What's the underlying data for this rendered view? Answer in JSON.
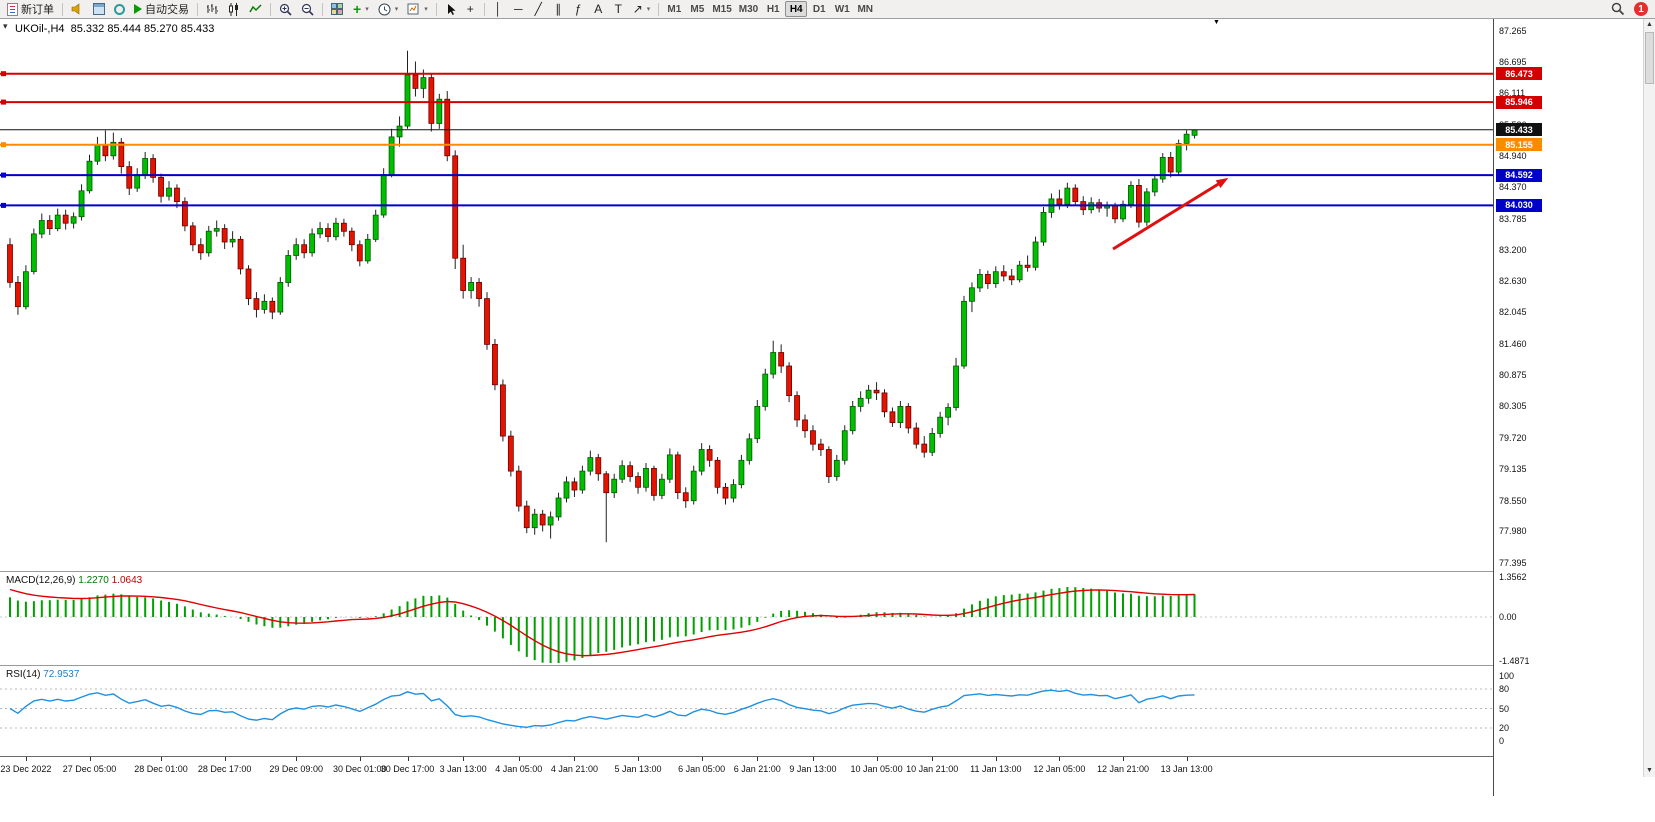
{
  "toolbar": {
    "new_order": "新订单",
    "autotrading": "自动交易",
    "timeframes": [
      "M1",
      "M5",
      "M15",
      "M30",
      "H1",
      "H4",
      "D1",
      "W1",
      "MN"
    ],
    "active_timeframe": "H4",
    "notification_count": "1",
    "glyphs": {
      "dropdown": "▾",
      "indicators_plus": "+",
      "crosshair": "+",
      "vline": "│",
      "hline": "─",
      "trendline": "╱",
      "channel": "∥",
      "fibonacci": "ƒ",
      "text_tool": "A",
      "label_tool": "T",
      "arrows_tool": "↗",
      "oneclick": "▾",
      "shift_marker": "▼",
      "scroll_up": "▲",
      "scroll_down": "▼"
    }
  },
  "chart": {
    "symbol_title": "UKOil-,H4",
    "ohlc_text": "85.332 85.444 85.270 85.433",
    "macd_label": "MACD(12,26,9)",
    "macd_value_main": "1.2270",
    "macd_value_signal": "1.0643",
    "rsi_label": "RSI(14)",
    "rsi_value": "72.9537"
  },
  "chart_data": {
    "type": "candlestick",
    "symbol": "UKOil-",
    "timeframe": "H4",
    "ohlc_current": {
      "open": 85.332,
      "high": 85.444,
      "low": 85.27,
      "close": 85.433
    },
    "ylim": [
      77.395,
      87.265
    ],
    "y_axis_ticks": [
      "87.265",
      "86.695",
      "86.111",
      "85.526",
      "84.940",
      "84.370",
      "83.785",
      "83.200",
      "82.630",
      "82.045",
      "81.460",
      "80.875",
      "80.305",
      "79.720",
      "79.135",
      "78.550",
      "77.980",
      "77.395"
    ],
    "x_labels": [
      [
        "23 Dec 2022",
        2
      ],
      [
        "27 Dec 05:00",
        10
      ],
      [
        "28 Dec 01:00",
        19
      ],
      [
        "28 Dec 17:00",
        27
      ],
      [
        "29 Dec 09:00",
        36
      ],
      [
        "30 Dec 01:00",
        44
      ],
      [
        "30 Dec 17:00",
        50
      ],
      [
        "3 Jan 13:00",
        57
      ],
      [
        "4 Jan 05:00",
        64
      ],
      [
        "4 Jan 21:00",
        71
      ],
      [
        "5 Jan 13:00",
        79
      ],
      [
        "6 Jan 05:00",
        87
      ],
      [
        "6 Jan 21:00",
        94
      ],
      [
        "9 Jan 13:00",
        101
      ],
      [
        "10 Jan 05:00",
        109
      ],
      [
        "10 Jan 21:00",
        116
      ],
      [
        "11 Jan 13:00",
        124
      ],
      [
        "12 Jan 05:00",
        132
      ],
      [
        "12 Jan 21:00",
        140
      ],
      [
        "13 Jan 13:00",
        148
      ]
    ],
    "hlines": [
      {
        "price": 86.473,
        "label": "86.473",
        "color": "#d40000"
      },
      {
        "price": 85.946,
        "label": "85.946",
        "color": "#d40000"
      },
      {
        "price": 85.155,
        "label": "85.155",
        "color": "#ff8a00"
      },
      {
        "price": 84.592,
        "label": "84.592",
        "color": "#0000c8"
      },
      {
        "price": 84.03,
        "label": "84.030",
        "color": "#0000c8"
      }
    ],
    "current_price": {
      "price": 85.433,
      "label": "85.433",
      "color": "#111111"
    },
    "trend_arrow": {
      "from": [
        139,
        83.22
      ],
      "to": [
        153.5,
        84.54
      ],
      "color": "#e01010"
    },
    "indicators": [
      {
        "type": "MACD",
        "params": [
          12,
          26,
          9
        ],
        "current": [
          1.227,
          1.0643
        ],
        "y_ticks": [
          "1.3562",
          "0.00",
          "-1.4871"
        ],
        "range": [
          -1.4871,
          1.3562
        ]
      },
      {
        "type": "RSI",
        "params": [
          14
        ],
        "current": 72.9537,
        "y_ticks": [
          "100",
          "80",
          "50",
          "20",
          "0"
        ],
        "levels": [
          80,
          50,
          20
        ]
      }
    ],
    "candles": [
      [
        83.3,
        83.42,
        82.5,
        82.6
      ],
      [
        82.6,
        82.72,
        82.0,
        82.15
      ],
      [
        82.15,
        82.92,
        82.1,
        82.8
      ],
      [
        82.8,
        83.6,
        82.75,
        83.5
      ],
      [
        83.5,
        83.88,
        83.42,
        83.75
      ],
      [
        83.75,
        83.85,
        83.48,
        83.6
      ],
      [
        83.6,
        83.97,
        83.55,
        83.85
      ],
      [
        83.85,
        83.95,
        83.58,
        83.7
      ],
      [
        83.7,
        83.9,
        83.6,
        83.82
      ],
      [
        83.82,
        84.42,
        83.75,
        84.3
      ],
      [
        84.3,
        84.97,
        84.25,
        84.85
      ],
      [
        84.85,
        85.3,
        84.78,
        85.15
      ],
      [
        85.15,
        85.42,
        84.85,
        84.95
      ],
      [
        84.95,
        85.38,
        84.88,
        85.2
      ],
      [
        85.2,
        85.28,
        84.62,
        84.75
      ],
      [
        84.75,
        84.85,
        84.22,
        84.35
      ],
      [
        84.35,
        84.72,
        84.28,
        84.6
      ],
      [
        84.6,
        85.02,
        84.52,
        84.9
      ],
      [
        84.9,
        84.98,
        84.45,
        84.55
      ],
      [
        84.55,
        84.62,
        84.08,
        84.2
      ],
      [
        84.2,
        84.48,
        84.12,
        84.35
      ],
      [
        84.35,
        84.42,
        83.98,
        84.1
      ],
      [
        84.1,
        84.18,
        83.55,
        83.65
      ],
      [
        83.65,
        83.72,
        83.18,
        83.3
      ],
      [
        83.3,
        83.42,
        83.02,
        83.15
      ],
      [
        83.15,
        83.65,
        83.08,
        83.55
      ],
      [
        83.55,
        83.75,
        83.45,
        83.6
      ],
      [
        83.6,
        83.68,
        83.22,
        83.35
      ],
      [
        83.35,
        83.55,
        83.25,
        83.4
      ],
      [
        83.4,
        83.46,
        82.75,
        82.85
      ],
      [
        82.85,
        82.92,
        82.18,
        82.3
      ],
      [
        82.3,
        82.42,
        81.95,
        82.1
      ],
      [
        82.1,
        82.38,
        82.02,
        82.25
      ],
      [
        82.25,
        82.32,
        81.92,
        82.05
      ],
      [
        82.05,
        82.7,
        82.0,
        82.6
      ],
      [
        82.6,
        83.2,
        82.52,
        83.1
      ],
      [
        83.1,
        83.42,
        83.02,
        83.3
      ],
      [
        83.3,
        83.4,
        83.05,
        83.15
      ],
      [
        83.15,
        83.6,
        83.08,
        83.5
      ],
      [
        83.5,
        83.72,
        83.42,
        83.6
      ],
      [
        83.6,
        83.7,
        83.35,
        83.45
      ],
      [
        83.45,
        83.8,
        83.38,
        83.7
      ],
      [
        83.7,
        83.78,
        83.45,
        83.55
      ],
      [
        83.55,
        83.62,
        83.18,
        83.3
      ],
      [
        83.3,
        83.38,
        82.9,
        83.0
      ],
      [
        83.0,
        83.5,
        82.95,
        83.4
      ],
      [
        83.4,
        83.95,
        83.35,
        83.85
      ],
      [
        83.85,
        84.72,
        83.8,
        84.6
      ],
      [
        84.6,
        85.45,
        84.55,
        85.3
      ],
      [
        85.3,
        85.68,
        85.12,
        85.5
      ],
      [
        85.5,
        86.9,
        85.45,
        86.45
      ],
      [
        86.45,
        86.7,
        86.05,
        86.2
      ],
      [
        86.2,
        86.55,
        86.02,
        86.4
      ],
      [
        86.4,
        86.48,
        85.4,
        85.55
      ],
      [
        85.55,
        86.1,
        85.45,
        86.0
      ],
      [
        86.0,
        86.15,
        84.85,
        84.95
      ],
      [
        84.95,
        85.05,
        82.85,
        83.05
      ],
      [
        83.05,
        83.3,
        82.3,
        82.45
      ],
      [
        82.45,
        82.7,
        82.3,
        82.6
      ],
      [
        82.6,
        82.68,
        82.15,
        82.3
      ],
      [
        82.3,
        82.42,
        81.35,
        81.45
      ],
      [
        81.45,
        81.55,
        80.6,
        80.7
      ],
      [
        80.7,
        80.8,
        79.65,
        79.75
      ],
      [
        79.75,
        79.85,
        79.0,
        79.1
      ],
      [
        79.1,
        79.2,
        78.35,
        78.45
      ],
      [
        78.45,
        78.55,
        77.95,
        78.05
      ],
      [
        78.05,
        78.4,
        77.92,
        78.3
      ],
      [
        78.3,
        78.38,
        77.98,
        78.1
      ],
      [
        78.1,
        78.35,
        77.85,
        78.25
      ],
      [
        78.25,
        78.7,
        78.18,
        78.6
      ],
      [
        78.6,
        79.0,
        78.52,
        78.9
      ],
      [
        78.9,
        78.98,
        78.62,
        78.75
      ],
      [
        78.75,
        79.2,
        78.68,
        79.1
      ],
      [
        79.1,
        79.48,
        79.02,
        79.35
      ],
      [
        79.35,
        79.42,
        78.92,
        79.05
      ],
      [
        79.05,
        79.1,
        77.78,
        78.7
      ],
      [
        78.7,
        79.05,
        78.6,
        78.95
      ],
      [
        78.95,
        79.3,
        78.88,
        79.2
      ],
      [
        79.2,
        79.28,
        78.9,
        79.0
      ],
      [
        79.0,
        79.08,
        78.68,
        78.8
      ],
      [
        78.8,
        79.25,
        78.72,
        79.15
      ],
      [
        79.15,
        79.2,
        78.55,
        78.65
      ],
      [
        78.65,
        79.05,
        78.58,
        78.95
      ],
      [
        78.95,
        79.52,
        78.88,
        79.4
      ],
      [
        79.4,
        79.46,
        78.58,
        78.7
      ],
      [
        78.7,
        78.8,
        78.42,
        78.55
      ],
      [
        78.55,
        79.2,
        78.48,
        79.1
      ],
      [
        79.1,
        79.62,
        79.02,
        79.5
      ],
      [
        79.5,
        79.58,
        79.18,
        79.3
      ],
      [
        79.3,
        79.36,
        78.68,
        78.8
      ],
      [
        78.8,
        78.88,
        78.48,
        78.6
      ],
      [
        78.6,
        78.95,
        78.52,
        78.85
      ],
      [
        78.85,
        79.4,
        78.78,
        79.3
      ],
      [
        79.3,
        79.8,
        79.22,
        79.7
      ],
      [
        79.7,
        80.42,
        79.62,
        80.3
      ],
      [
        80.3,
        81.0,
        80.22,
        80.9
      ],
      [
        80.9,
        81.52,
        80.82,
        81.3
      ],
      [
        81.3,
        81.45,
        80.92,
        81.05
      ],
      [
        81.05,
        81.12,
        80.38,
        80.5
      ],
      [
        80.5,
        80.58,
        79.92,
        80.05
      ],
      [
        80.05,
        80.15,
        79.72,
        79.85
      ],
      [
        79.85,
        79.95,
        79.48,
        79.6
      ],
      [
        79.6,
        79.7,
        79.38,
        79.5
      ],
      [
        79.5,
        79.56,
        78.88,
        79.0
      ],
      [
        79.0,
        79.4,
        78.92,
        79.3
      ],
      [
        79.3,
        79.95,
        79.22,
        79.85
      ],
      [
        79.85,
        80.4,
        79.78,
        80.3
      ],
      [
        80.3,
        80.58,
        80.2,
        80.45
      ],
      [
        80.45,
        80.7,
        80.35,
        80.6
      ],
      [
        80.6,
        80.75,
        80.42,
        80.55
      ],
      [
        80.55,
        80.62,
        80.1,
        80.2
      ],
      [
        80.2,
        80.28,
        79.92,
        80.0
      ],
      [
        80.0,
        80.4,
        79.9,
        80.3
      ],
      [
        80.3,
        80.36,
        79.8,
        79.9
      ],
      [
        79.9,
        80.0,
        79.52,
        79.6
      ],
      [
        79.6,
        79.75,
        79.35,
        79.45
      ],
      [
        79.45,
        79.9,
        79.38,
        79.8
      ],
      [
        79.8,
        80.2,
        79.72,
        80.1
      ],
      [
        80.1,
        80.36,
        79.95,
        80.28
      ],
      [
        80.28,
        81.2,
        80.22,
        81.05
      ],
      [
        81.05,
        82.35,
        81.0,
        82.25
      ],
      [
        82.25,
        82.6,
        82.05,
        82.5
      ],
      [
        82.5,
        82.85,
        82.42,
        82.75
      ],
      [
        82.75,
        82.82,
        82.48,
        82.58
      ],
      [
        82.58,
        82.9,
        82.5,
        82.8
      ],
      [
        82.8,
        82.92,
        82.62,
        82.72
      ],
      [
        82.72,
        82.85,
        82.55,
        82.65
      ],
      [
        82.65,
        83.0,
        82.6,
        82.92
      ],
      [
        82.92,
        83.1,
        82.8,
        82.88
      ],
      [
        82.88,
        83.45,
        82.82,
        83.35
      ],
      [
        83.35,
        84.0,
        83.28,
        83.9
      ],
      [
        83.9,
        84.25,
        83.8,
        84.15
      ],
      [
        84.15,
        84.32,
        83.95,
        84.05
      ],
      [
        84.05,
        84.45,
        83.98,
        84.35
      ],
      [
        84.35,
        84.42,
        84.02,
        84.1
      ],
      [
        84.1,
        84.2,
        83.85,
        83.95
      ],
      [
        83.95,
        84.18,
        83.88,
        84.08
      ],
      [
        84.08,
        84.15,
        83.9,
        83.98
      ],
      [
        83.98,
        84.1,
        83.82,
        84.02
      ],
      [
        84.02,
        84.08,
        83.7,
        83.78
      ],
      [
        83.78,
        84.12,
        83.72,
        84.05
      ],
      [
        84.05,
        84.48,
        83.98,
        84.4
      ],
      [
        84.4,
        84.52,
        83.62,
        83.72
      ],
      [
        83.72,
        84.35,
        83.65,
        84.28
      ],
      [
        84.28,
        84.6,
        84.2,
        84.52
      ],
      [
        84.52,
        85.0,
        84.45,
        84.92
      ],
      [
        84.92,
        85.02,
        84.55,
        84.65
      ],
      [
        84.65,
        85.25,
        84.58,
        85.18
      ],
      [
        85.18,
        85.42,
        85.05,
        85.35
      ],
      [
        85.33,
        85.44,
        85.27,
        85.43
      ]
    ]
  }
}
